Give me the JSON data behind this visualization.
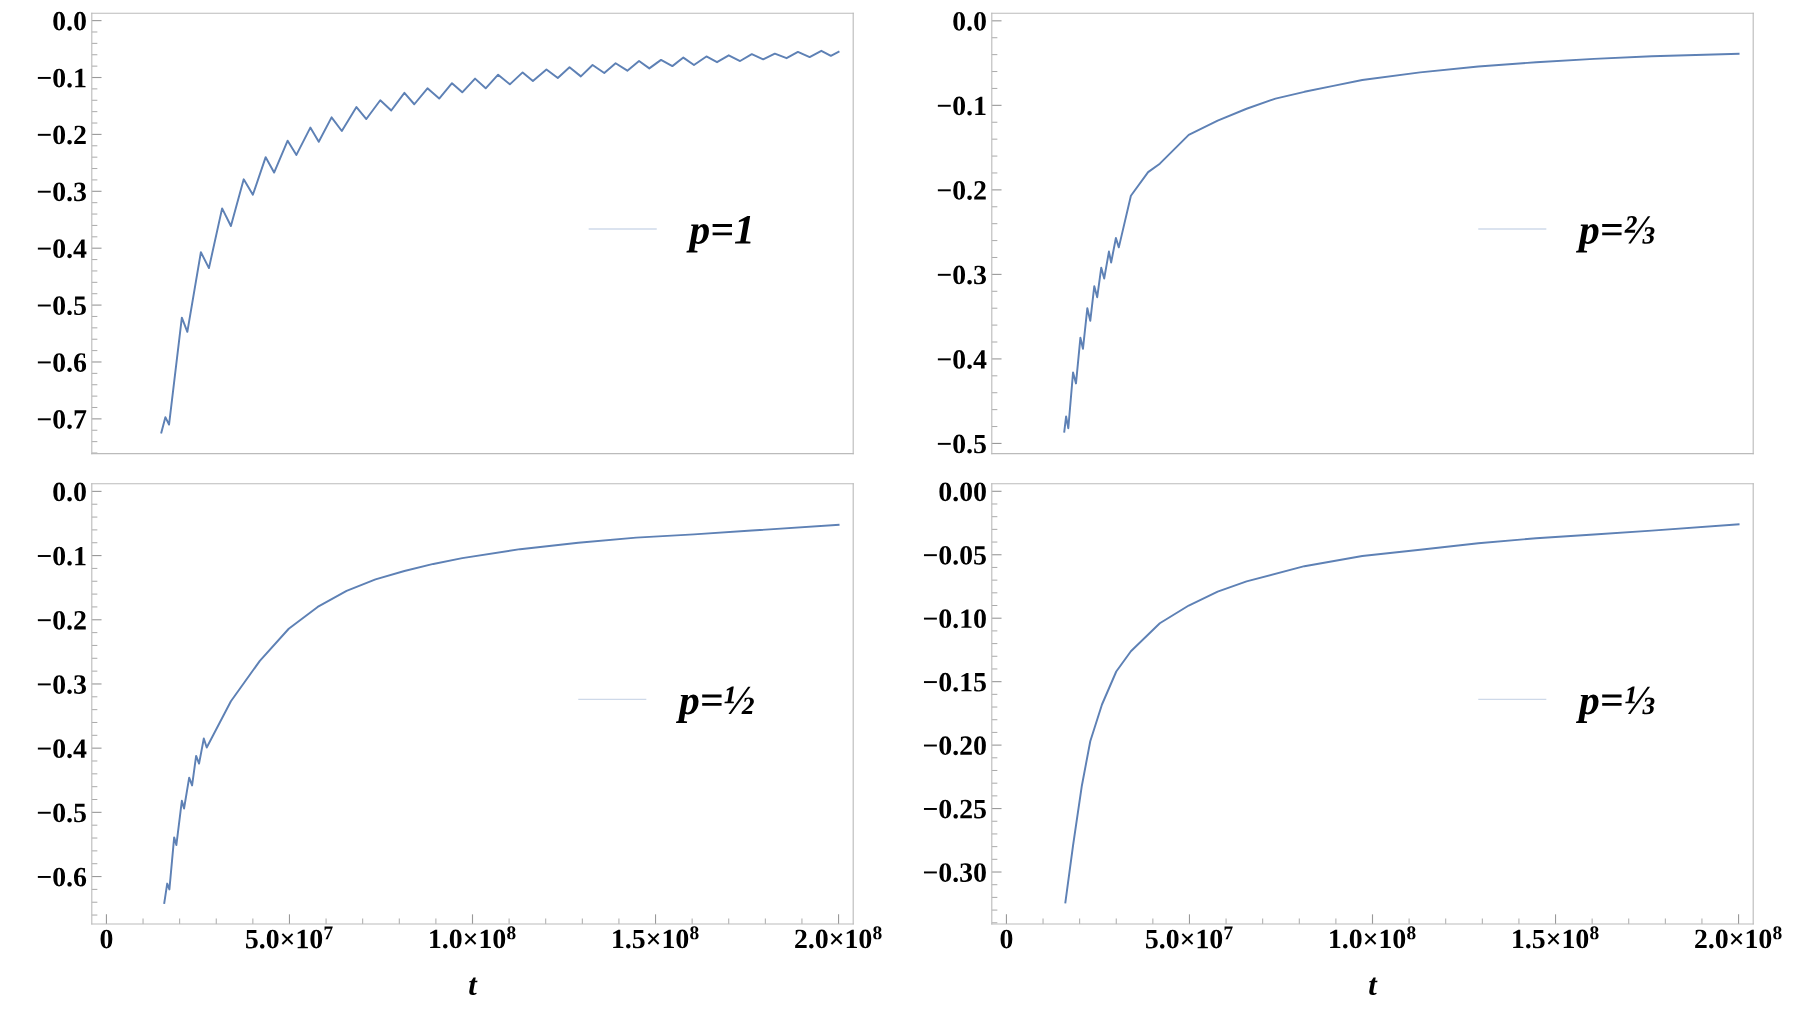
{
  "chart_data": [
    {
      "type": "line",
      "xlim": [
        -4000000,
        204000000
      ],
      "ylim": [
        -0.761,
        0.013
      ],
      "yticks": [
        {
          "value": 0,
          "label": "0.0"
        },
        {
          "value": -0.1,
          "label": "−0.1"
        },
        {
          "value": -0.2,
          "label": "−0.2"
        },
        {
          "value": -0.3,
          "label": "−0.3"
        },
        {
          "value": -0.4,
          "label": "−0.4"
        },
        {
          "value": -0.5,
          "label": "−0.5"
        },
        {
          "value": -0.6,
          "label": "−0.6"
        },
        {
          "value": -0.7,
          "label": "−0.7"
        }
      ],
      "tick_labels": "y",
      "grid": false,
      "legend": "right",
      "marker": "none",
      "line_style": "solid",
      "series": [
        {
          "name": "p=1",
          "color": "#5e81b5",
          "x": [
            15000000.0,
            16100000.0,
            17100000.0,
            20600000.0,
            22100000.0,
            25800000.0,
            28000000.0,
            31600000.0,
            34000000.0,
            37500000.0,
            40000000.0,
            43500000.0,
            45800000.0,
            49500000.0,
            51900000.0,
            55700000.0,
            58000000.0,
            61500000.0,
            64300000.0,
            68300000.0,
            71000000.0,
            74800000.0,
            77800000.0,
            81400000.0,
            84100000.0,
            87700000.0,
            90900000.0,
            94400000.0,
            97200000.0,
            100700000.0,
            103600000.0,
            107000000.0,
            110200000.0,
            113700000.0,
            116500000.0,
            120200000.0,
            123300000.0,
            126500000.0,
            129600000.0,
            132800000.0,
            136000000.0,
            139100000.0,
            142300000.0,
            145500000.0,
            148300000.0,
            151500000.0,
            154600000.0,
            157600000.0,
            160500000.0,
            163900000.0,
            166800000.0,
            170000000.0,
            173100000.0,
            176300000.0,
            179400000.0,
            182600000.0,
            185800000.0,
            188900000.0,
            192100000.0,
            195300000.0,
            197900000.0,
            200000000.0
          ],
          "values": [
            -0.724,
            -0.697,
            -0.71,
            -0.522,
            -0.547,
            -0.407,
            -0.435,
            -0.33,
            -0.361,
            -0.279,
            -0.306,
            -0.24,
            -0.267,
            -0.211,
            -0.236,
            -0.188,
            -0.213,
            -0.17,
            -0.194,
            -0.152,
            -0.173,
            -0.14,
            -0.158,
            -0.127,
            -0.147,
            -0.119,
            -0.137,
            -0.11,
            -0.126,
            -0.102,
            -0.119,
            -0.095,
            -0.112,
            -0.091,
            -0.106,
            -0.086,
            -0.101,
            -0.082,
            -0.098,
            -0.078,
            -0.092,
            -0.075,
            -0.088,
            -0.071,
            -0.084,
            -0.069,
            -0.08,
            -0.065,
            -0.078,
            -0.063,
            -0.073,
            -0.061,
            -0.071,
            -0.059,
            -0.068,
            -0.058,
            -0.066,
            -0.055,
            -0.064,
            -0.053,
            -0.062,
            -0.055
          ]
        }
      ]
    },
    {
      "type": "line",
      "xlim": [
        -4000000,
        204000000
      ],
      "ylim": [
        -0.512,
        0.009
      ],
      "yticks": [
        {
          "value": 0,
          "label": "0.0"
        },
        {
          "value": -0.1,
          "label": "−0.1"
        },
        {
          "value": -0.2,
          "label": "−0.2"
        },
        {
          "value": -0.3,
          "label": "−0.3"
        },
        {
          "value": -0.4,
          "label": "−0.4"
        },
        {
          "value": -0.5,
          "label": "−0.5"
        }
      ],
      "tick_labels": "y",
      "grid": false,
      "legend": "right",
      "marker": "none",
      "line_style": "solid",
      "series": [
        {
          "name": "p=⅔",
          "color": "#5e81b5",
          "x": [
            15800000.0,
            16300000.0,
            16900000.0,
            18200000.0,
            19000000.0,
            20200000.0,
            20900000.0,
            22100000.0,
            22900000.0,
            24000000.0,
            24800000.0,
            25900000.0,
            26700000.0,
            28000000.0,
            28600000.0,
            29900000.0,
            30700000.0,
            34000000.0,
            38700000.0,
            41900000.0,
            49800000.0,
            57700000.0,
            65600000.0,
            73500000.0,
            81400000.0,
            89300000.0,
            97200000.0,
            113000000.0,
            128900000.0,
            144700000.0,
            160500000.0,
            176300000.0,
            200000000.0
          ],
          "values": [
            -0.486,
            -0.468,
            -0.482,
            -0.416,
            -0.429,
            -0.375,
            -0.388,
            -0.34,
            -0.355,
            -0.314,
            -0.327,
            -0.292,
            -0.305,
            -0.273,
            -0.286,
            -0.257,
            -0.268,
            -0.207,
            -0.179,
            -0.169,
            -0.135,
            -0.118,
            -0.104,
            -0.092,
            -0.084,
            -0.077,
            -0.07,
            -0.061,
            -0.054,
            -0.049,
            -0.045,
            -0.042,
            -0.039
          ]
        }
      ]
    },
    {
      "type": "line",
      "xlabel": "t",
      "xlim": [
        -4000000,
        204000000
      ],
      "ylim": [
        -0.674,
        0.012
      ],
      "xticks": [
        0,
        {
          "value": 50000000,
          "label": "5.0×10$^{7}$"
        },
        {
          "value": 100000000,
          "label": "1.0×10$^{8}$"
        },
        {
          "value": 150000000,
          "label": "1.5×10$^{8}$"
        },
        {
          "value": 200000000,
          "label": "2.0×10$^{8}$"
        }
      ],
      "yticks": [
        {
          "value": 0,
          "label": "0.0"
        },
        {
          "value": -0.1,
          "label": "−0.1"
        },
        {
          "value": -0.2,
          "label": "−0.2"
        },
        {
          "value": -0.3,
          "label": "−0.3"
        },
        {
          "value": -0.4,
          "label": "−0.4"
        },
        {
          "value": -0.5,
          "label": "−0.5"
        },
        {
          "value": -0.6,
          "label": "−0.6"
        }
      ],
      "grid": false,
      "legend": "right",
      "marker": "none",
      "line_style": "solid",
      "series": [
        {
          "name": "p=½",
          "color": "#5e81b5",
          "x": [
            15800000.0,
            16600000.0,
            17200000.0,
            18500000.0,
            19100000.0,
            20600000.0,
            21200000.0,
            22600000.0,
            23400000.0,
            24500000.0,
            25300000.0,
            26600000.0,
            27400000.0,
            34000000.0,
            41900000.0,
            49800000.0,
            57700000.0,
            65600000.0,
            73500000.0,
            81400000.0,
            89300000.0,
            97200000.0,
            113000000.0,
            128900000.0,
            144700000.0,
            160500000.0,
            176300000.0,
            200000000.0
          ],
          "values": [
            -0.641,
            -0.611,
            -0.62,
            -0.539,
            -0.551,
            -0.482,
            -0.494,
            -0.446,
            -0.458,
            -0.412,
            -0.424,
            -0.385,
            -0.399,
            -0.327,
            -0.264,
            -0.214,
            -0.18,
            -0.155,
            -0.137,
            -0.124,
            -0.113,
            -0.104,
            -0.09,
            -0.08,
            -0.072,
            -0.067,
            -0.061,
            -0.052
          ]
        }
      ]
    },
    {
      "type": "line",
      "xlabel": "t",
      "xlim": [
        -4000000,
        204000000
      ],
      "ylim": [
        -0.341,
        0.006
      ],
      "xticks": [
        0,
        {
          "value": 50000000,
          "label": "5.0×10$^{7}$"
        },
        {
          "value": 100000000,
          "label": "1.0×10$^{8}$"
        },
        {
          "value": 150000000,
          "label": "1.5×10$^{8}$"
        },
        {
          "value": 200000000,
          "label": "2.0×10$^{8}$"
        }
      ],
      "yticks": [
        {
          "value": 0,
          "label": "0.00"
        },
        {
          "value": -0.05,
          "label": "−0.05"
        },
        {
          "value": -0.1,
          "label": "−0.10"
        },
        {
          "value": -0.15,
          "label": "−0.15"
        },
        {
          "value": -0.2,
          "label": "−0.20"
        },
        {
          "value": -0.25,
          "label": "−0.25"
        },
        {
          "value": -0.3,
          "label": "−0.30"
        }
      ],
      "grid": false,
      "legend": "right",
      "marker": "none",
      "line_style": "solid",
      "series": [
        {
          "name": "p=⅓",
          "color": "#5e81b5",
          "x": [
            16100000.0,
            18200000.0,
            20600000.0,
            22900000.0,
            26100000.0,
            30000000.0,
            34000000.0,
            41900000.0,
            49800000.0,
            57700000.0,
            65600000.0,
            81400000.0,
            97200000.0,
            113000000.0,
            128900000.0,
            144700000.0,
            160500000.0,
            176300000.0,
            200000000.0
          ],
          "values": [
            -0.324,
            -0.279,
            -0.232,
            -0.197,
            -0.168,
            -0.142,
            -0.126,
            -0.104,
            -0.09,
            -0.079,
            -0.071,
            -0.059,
            -0.051,
            -0.046,
            -0.041,
            -0.037,
            -0.034,
            -0.031,
            -0.026
          ]
        }
      ]
    }
  ]
}
